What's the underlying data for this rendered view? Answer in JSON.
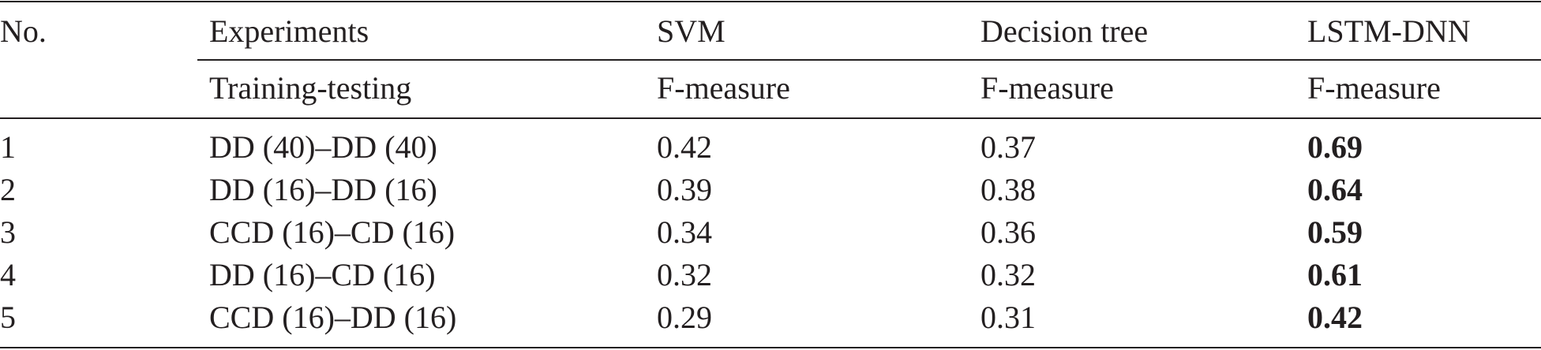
{
  "table": {
    "header": {
      "row1": [
        "No.",
        "Experiments",
        "SVM",
        "Decision tree",
        "LSTM-DNN"
      ],
      "row2": [
        "Training-testing",
        "F-measure",
        "F-measure",
        "F-measure"
      ]
    },
    "rows": [
      [
        "1",
        "DD (40)–DD (40)",
        "0.42",
        "0.37",
        "0.69"
      ],
      [
        "2",
        "DD (16)–DD (16)",
        "0.39",
        "0.38",
        "0.64"
      ],
      [
        "3",
        "CCD (16)–CD (16)",
        "0.34",
        "0.36",
        "0.59"
      ],
      [
        "4",
        "DD (16)–CD (16)",
        "0.32",
        "0.32",
        "0.61"
      ],
      [
        "5",
        "CCD (16)–DD (16)",
        "0.29",
        "0.31",
        "0.42"
      ]
    ]
  }
}
